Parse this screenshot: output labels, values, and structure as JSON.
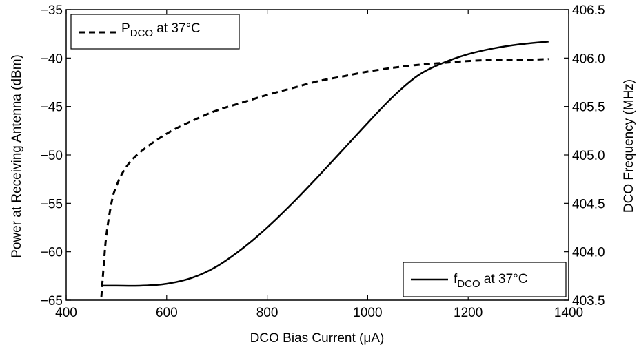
{
  "chart_data": {
    "type": "line",
    "xlabel": "DCO Bias Current (μA)",
    "ylabel_left": "Power at Receiving Antenna (dBm)",
    "ylabel_right": "DCO Frequency (MHz)",
    "xlim": [
      400,
      1400
    ],
    "ylim_left": [
      -65,
      -35
    ],
    "ylim_right": [
      403.5,
      406.5
    ],
    "x_ticks": [
      "400",
      "600",
      "800",
      "1000",
      "1200",
      "1400"
    ],
    "y_ticks_left": [
      "−35",
      "−40",
      "−45",
      "−50",
      "−55",
      "−60",
      "−65"
    ],
    "y_ticks_right": [
      "406.5",
      "406.0",
      "405.5",
      "405.0",
      "404.5",
      "404.0",
      "403.5"
    ],
    "grid": false,
    "series": [
      {
        "legend_main": "P",
        "legend_sub": "DCO",
        "legend_rest": " at 37°C",
        "axis": "left",
        "style": "dashed",
        "legend_position": "top-left",
        "x": [
          470,
          475,
          480,
          490,
          500,
          520,
          550,
          600,
          650,
          700,
          750,
          800,
          850,
          900,
          950,
          1000,
          1050,
          1100,
          1150,
          1200,
          1250,
          1300,
          1360
        ],
        "y": [
          -64.7,
          -61.2,
          -58.3,
          -55.0,
          -53.2,
          -51.2,
          -49.6,
          -47.8,
          -46.5,
          -45.4,
          -44.6,
          -43.8,
          -43.1,
          -42.4,
          -41.9,
          -41.4,
          -41.0,
          -40.7,
          -40.5,
          -40.3,
          -40.2,
          -40.2,
          -40.1
        ]
      },
      {
        "legend_main": "f",
        "legend_sub": "DCO",
        "legend_rest": " at 37°C",
        "axis": "right",
        "style": "solid",
        "legend_position": "bottom-right",
        "x": [
          470,
          500,
          550,
          600,
          650,
          700,
          750,
          800,
          850,
          900,
          950,
          1000,
          1050,
          1100,
          1150,
          1200,
          1250,
          1300,
          1360
        ],
        "y": [
          403.65,
          403.65,
          403.65,
          403.67,
          403.73,
          403.85,
          404.03,
          404.25,
          404.5,
          404.77,
          405.05,
          405.33,
          405.6,
          405.82,
          405.95,
          406.04,
          406.1,
          406.14,
          406.17
        ]
      }
    ]
  }
}
